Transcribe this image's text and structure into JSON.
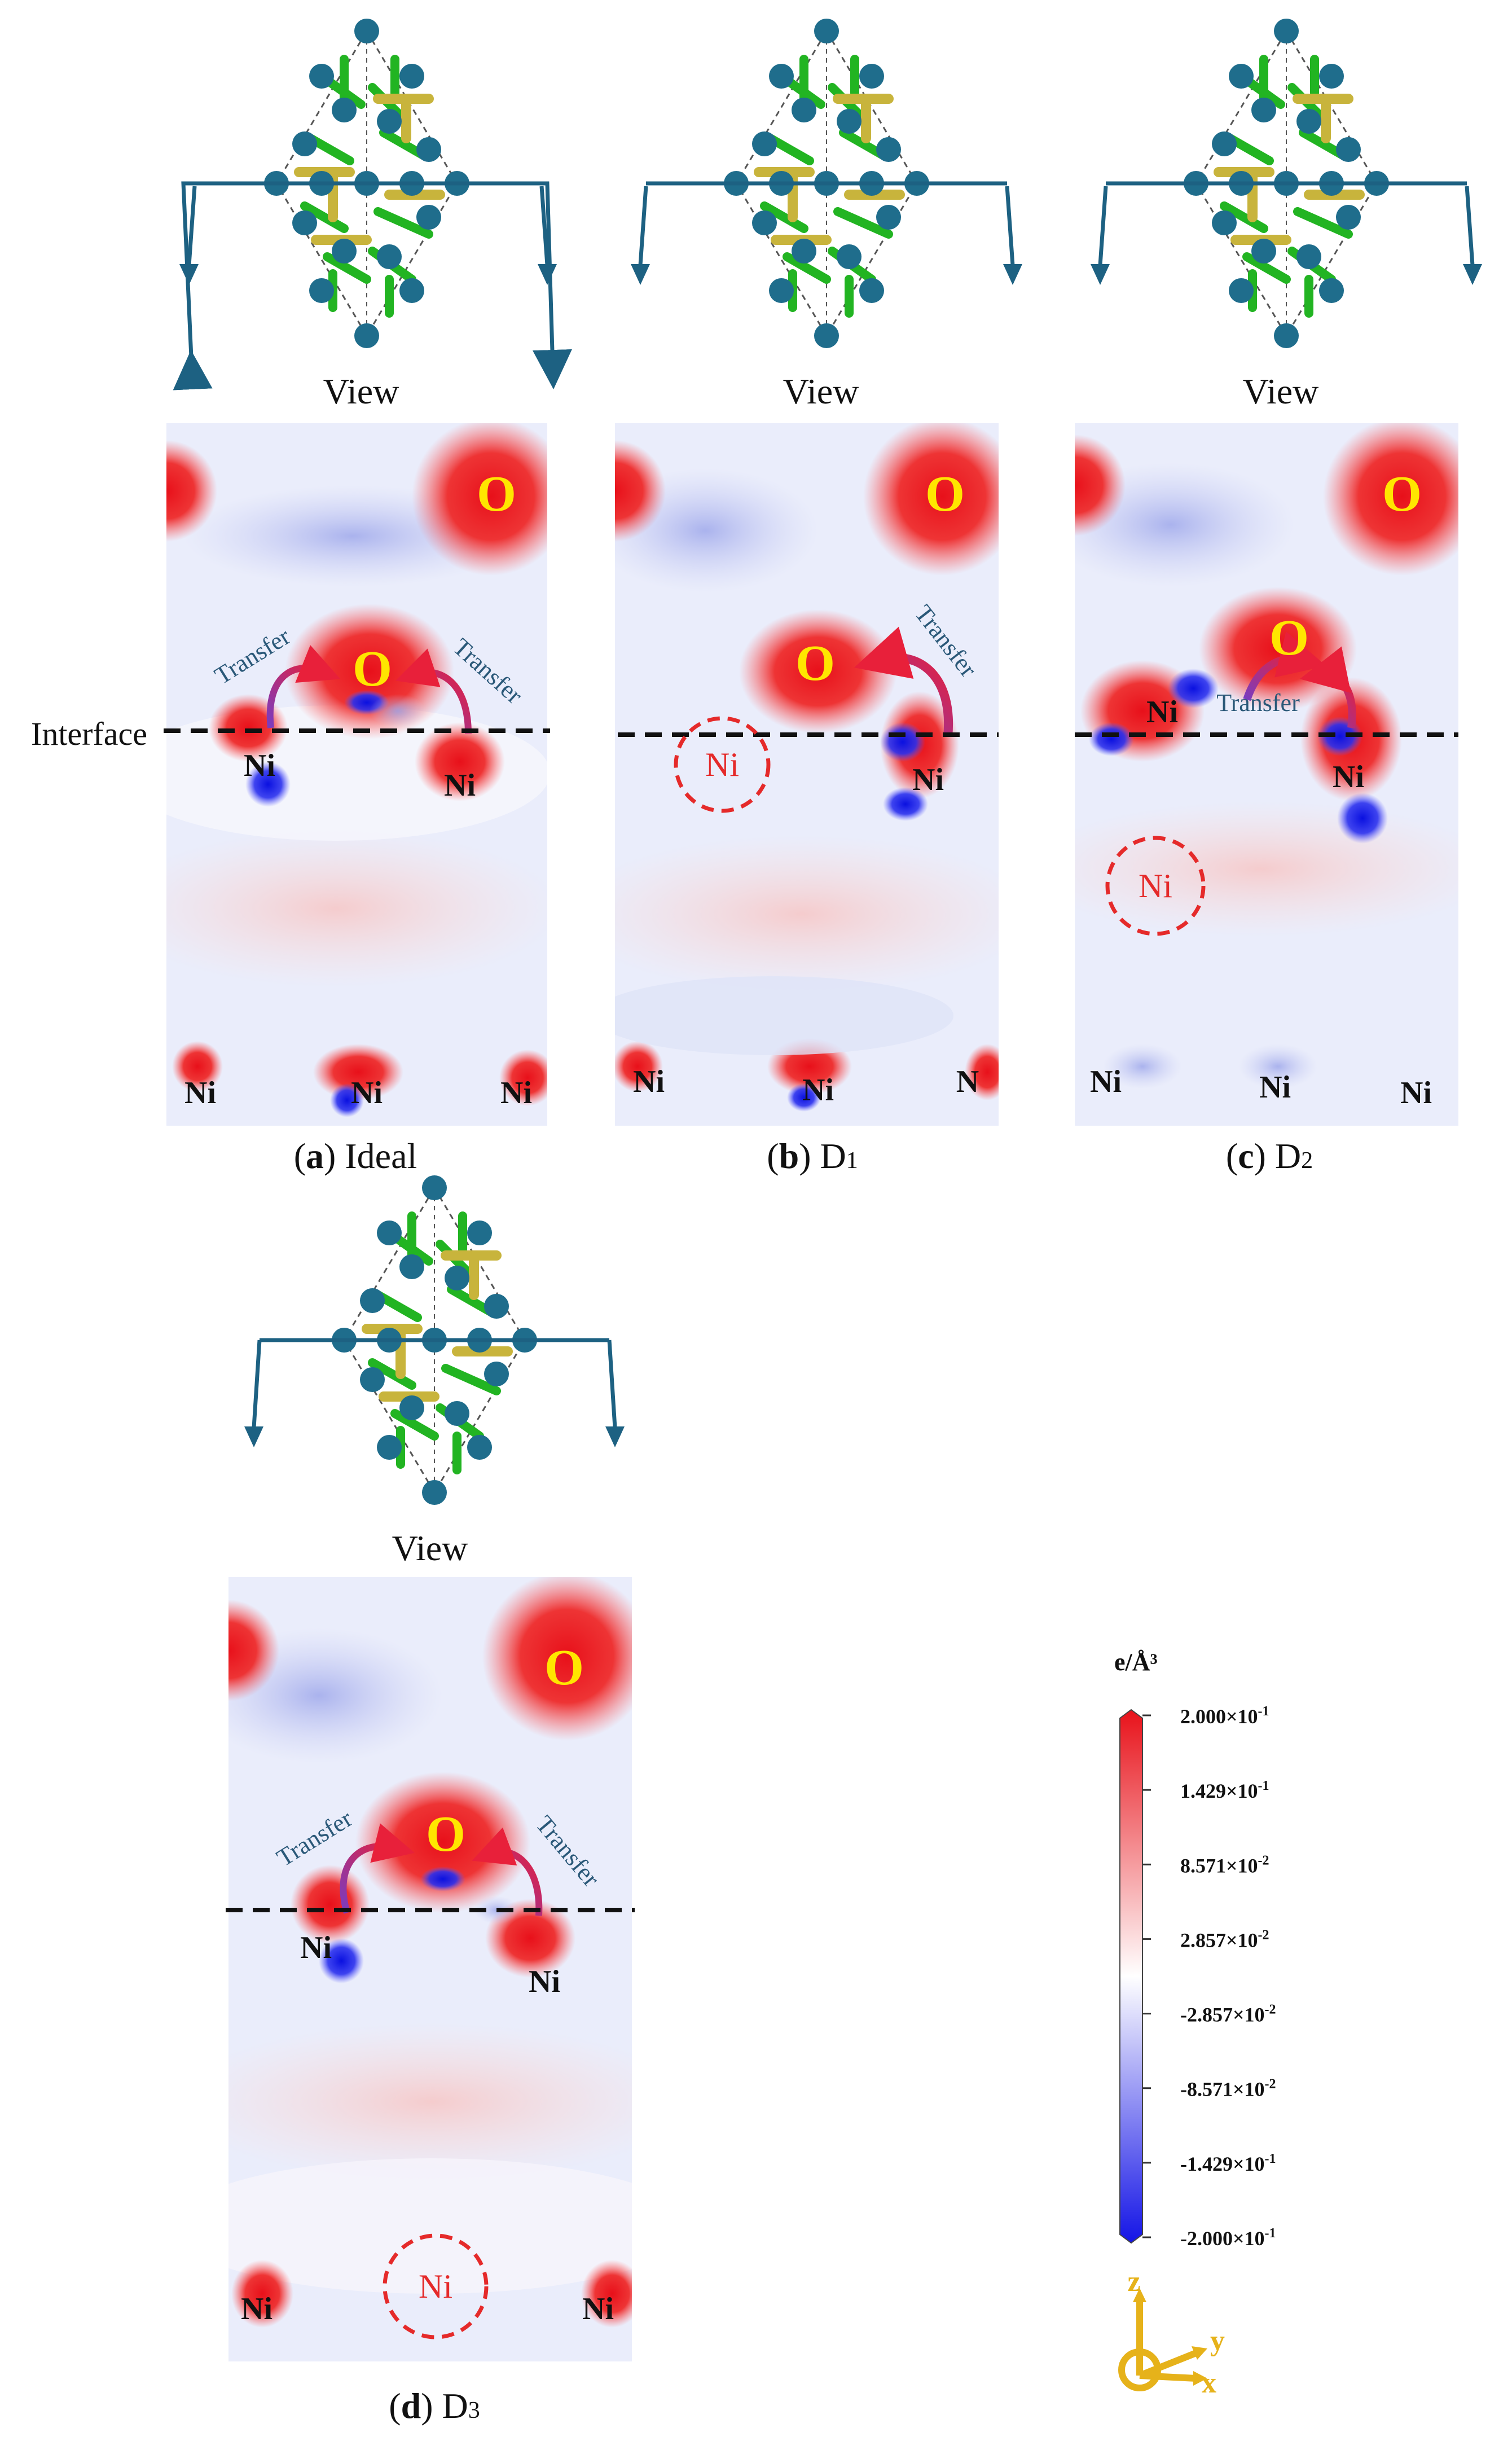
{
  "interface_label": "Interface",
  "view_label": "View",
  "panels": [
    {
      "id": "a",
      "caption_letter": "a",
      "caption_rest": " Ideal",
      "o_labels": [
        "O",
        "O"
      ],
      "transfer_labels": [
        "Transfer",
        "Transfer"
      ],
      "ni_labels": [
        "Ni",
        "Ni",
        "Ni",
        "Ni",
        "Ni"
      ],
      "missing_ni": ""
    },
    {
      "id": "b",
      "caption_letter": "b",
      "caption_rest": " D",
      "caption_sub": "1",
      "o_labels": [
        "O",
        "O"
      ],
      "transfer_labels": [
        "Transfer"
      ],
      "ni_labels": [
        "Ni",
        "Ni",
        "Ni",
        "N"
      ],
      "missing_ni": "Ni"
    },
    {
      "id": "c",
      "caption_letter": "c",
      "caption_rest": " D",
      "caption_sub": "2",
      "o_labels": [
        "O",
        "O"
      ],
      "transfer_labels": [
        "Transfer"
      ],
      "ni_labels": [
        "Ni",
        "Ni",
        "Ni",
        "Ni",
        "Ni"
      ],
      "missing_ni": "Ni"
    },
    {
      "id": "d",
      "caption_letter": "d",
      "caption_rest": " D",
      "caption_sub": "3",
      "o_labels": [
        "O",
        "O"
      ],
      "transfer_labels": [
        "Transfer",
        "Transfer"
      ],
      "ni_labels": [
        "Ni",
        "Ni",
        "Ni",
        "Ni"
      ],
      "missing_ni": "Ni"
    }
  ],
  "colorbar": {
    "unit": "e/Å³",
    "ticks": [
      {
        "mant": "2.000×10",
        "exp": "-1"
      },
      {
        "mant": "1.429×10",
        "exp": "-1"
      },
      {
        "mant": "8.571×10",
        "exp": "-2"
      },
      {
        "mant": "2.857×10",
        "exp": "-2"
      },
      {
        "mant": "-2.857×10",
        "exp": "-2"
      },
      {
        "mant": "-8.571×10",
        "exp": "-2"
      },
      {
        "mant": "-1.429×10",
        "exp": "-1"
      },
      {
        "mant": "-2.000×10",
        "exp": "-1"
      }
    ],
    "colors": {
      "top": "#e8121a",
      "mid": "#ffffff",
      "bottom": "#1414e6"
    }
  },
  "axes": {
    "z": "z",
    "y": "y",
    "x": "x",
    "color": "#e6b21a"
  },
  "colors": {
    "positive": "#ee1c24",
    "negative": "#1010e8",
    "background_tint": "#e9ecfa",
    "atom_blue": "#1f6d8c",
    "atom_green": "#22b422",
    "atom_yellow": "#c8b43c",
    "arrow": "#1d6182",
    "o_label": "#ffe600",
    "missing": "#e52a2a"
  }
}
